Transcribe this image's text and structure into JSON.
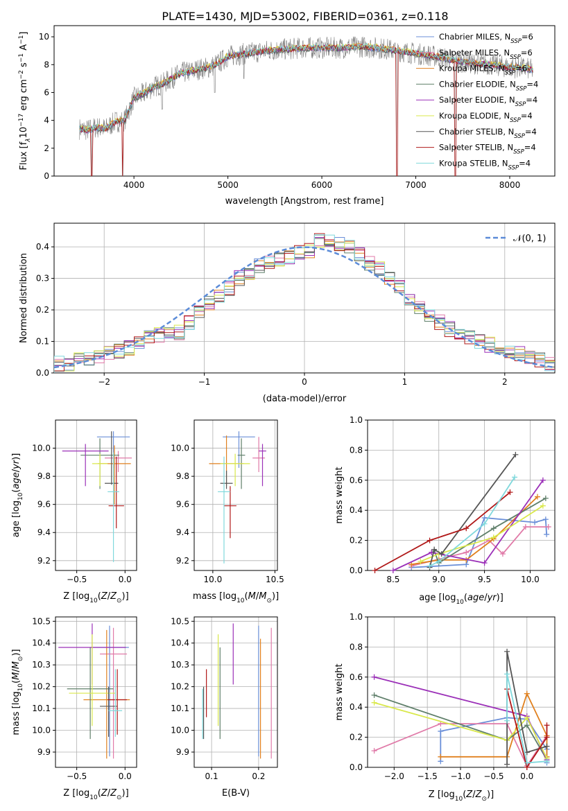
{
  "title": "PLATE=1430, MJD=53002, FIBERID=0361, z=0.118",
  "colors": {
    "Chabrier MILES": "#6a8fd8",
    "Salpeter MILES": "#e07aa8",
    "Kroupa MILES": "#e0801e",
    "Chabrier ELODIE": "#5f7f6a",
    "Salpeter ELODIE": "#9b30b8",
    "Kroupa ELODIE": "#d9e84a",
    "Chabrier STELIB": "#555555",
    "Salpeter STELIB": "#b01818",
    "Kroupa STELIB": "#7fd8dc"
  },
  "chart_data": [
    {
      "panel": "spectrum",
      "type": "line",
      "xlabel": "wavelength [Angstrom, rest frame]",
      "ylabel": "Flux [f",
      "ylabel_full": "Flux [fλ10^-17 erg cm^-2 s^-1 A^-1]",
      "xlim": [
        3150,
        8480
      ],
      "ylim": [
        0,
        10.8
      ],
      "xticks": [
        4000,
        5000,
        6000,
        7000,
        8000
      ],
      "yticks": [
        0,
        2,
        4,
        6,
        8,
        10
      ],
      "legend_position": "upper right",
      "data_color": "#808080",
      "continuum": {
        "x": [
          3420,
          3500,
          3600,
          3700,
          3800,
          3900,
          4000,
          4100,
          4200,
          4300,
          4400,
          4500,
          4600,
          4700,
          4800,
          4900,
          5000,
          5200,
          5400,
          5600,
          5800,
          6000,
          6200,
          6400,
          6600,
          6800,
          7000,
          7200,
          7400,
          7600,
          7800,
          8000,
          8100,
          8200,
          8250
        ],
        "y": [
          3.4,
          3.3,
          3.5,
          3.4,
          3.9,
          4.0,
          5.6,
          5.9,
          6.4,
          6.6,
          7.0,
          7.4,
          7.5,
          7.7,
          7.8,
          8.1,
          8.6,
          8.8,
          9.0,
          9.1,
          9.2,
          9.2,
          9.2,
          9.3,
          9.2,
          9.0,
          8.8,
          8.6,
          8.3,
          8.1,
          8.0,
          7.8,
          7.8,
          7.7,
          7.6
        ]
      },
      "dips": [
        {
          "x": 3550,
          "y": 0.0
        },
        {
          "x": 3880,
          "y": 0.0
        },
        {
          "x": 4300,
          "y": 4.8
        },
        {
          "x": 4860,
          "y": 6.0
        },
        {
          "x": 5170,
          "y": 7.0
        },
        {
          "x": 6800,
          "y": 0.0
        },
        {
          "x": 7420,
          "y": 0.0
        }
      ],
      "series": [
        {
          "name": "Chabrier MILES, N",
          "sub": "SSP",
          "suffix": "=6"
        },
        {
          "name": "Salpeter MILES, N",
          "sub": "SSP",
          "suffix": "=6"
        },
        {
          "name": "Kroupa MILES, N",
          "sub": "SSP",
          "suffix": "=6"
        },
        {
          "name": "Chabrier ELODIE, N",
          "sub": "SSP",
          "suffix": "=4"
        },
        {
          "name": "Salpeter ELODIE, N",
          "sub": "SSP",
          "suffix": "=4"
        },
        {
          "name": "Kroupa ELODIE, N",
          "sub": "SSP",
          "suffix": "=4"
        },
        {
          "name": "Chabrier STELIB, N",
          "sub": "SSP",
          "suffix": "=4"
        },
        {
          "name": "Salpeter STELIB, N",
          "sub": "SSP",
          "suffix": "=4"
        },
        {
          "name": "Kroupa STELIB, N",
          "sub": "SSP",
          "suffix": "=4"
        }
      ]
    },
    {
      "panel": "residuals",
      "type": "histogram",
      "xlabel": "(data-model)/error",
      "ylabel": "Normed distribution",
      "xlim": [
        -2.5,
        2.5
      ],
      "ylim": [
        0,
        0.475
      ],
      "xticks": [
        -2,
        -1,
        0,
        1,
        2
      ],
      "yticks": [
        0.0,
        0.1,
        0.2,
        0.3,
        0.4
      ],
      "grid": true,
      "gaussian_label": "𝒩(0, 1)",
      "gaussian_color": "#5b8bd8",
      "bin_edges_start": -2.5,
      "bin_width": 0.1,
      "base_hist": [
        0.03,
        0.03,
        0.04,
        0.04,
        0.05,
        0.06,
        0.07,
        0.08,
        0.1,
        0.11,
        0.12,
        0.13,
        0.13,
        0.16,
        0.19,
        0.22,
        0.24,
        0.27,
        0.3,
        0.32,
        0.34,
        0.35,
        0.36,
        0.37,
        0.38,
        0.39,
        0.42,
        0.42,
        0.41,
        0.4,
        0.38,
        0.35,
        0.33,
        0.3,
        0.27,
        0.24,
        0.21,
        0.18,
        0.16,
        0.14,
        0.12,
        0.11,
        0.1,
        0.09,
        0.08,
        0.07,
        0.06,
        0.05,
        0.04,
        0.03
      ]
    },
    {
      "panel": "age_vs_Z",
      "type": "errorbar",
      "xlabel": "Z [log10(Z/Z☉)]",
      "ylabel": "age  [log10(age/yr)]",
      "xlim": [
        -0.72,
        0.12
      ],
      "ylim": [
        9.13,
        10.2
      ],
      "xticks": [
        -0.5,
        0.0
      ],
      "yticks": [
        9.2,
        9.4,
        9.6,
        9.8,
        10.0
      ],
      "points": [
        {
          "series": "Chabrier MILES",
          "x": -0.12,
          "y": 10.08,
          "xerr": 0.17,
          "yerr_up": 0.04,
          "yerr_dn": 0.22
        },
        {
          "series": "Salpeter MILES",
          "x": -0.07,
          "y": 9.93,
          "xerr": 0.14,
          "yerr_up": 0.05,
          "yerr_dn": 0.1
        },
        {
          "series": "Kroupa MILES",
          "x": -0.11,
          "y": 9.89,
          "xerr": 0.17,
          "yerr_up": 0.13,
          "yerr_dn": 0.29
        },
        {
          "series": "Chabrier ELODIE",
          "x": -0.26,
          "y": 9.95,
          "xerr": 0.2,
          "yerr_up": 0.12,
          "yerr_dn": 0.24
        },
        {
          "series": "Salpeter ELODIE",
          "x": -0.41,
          "y": 9.98,
          "xerr": 0.24,
          "yerr_up": 0.05,
          "yerr_dn": 0.25
        },
        {
          "series": "Kroupa ELODIE",
          "x": -0.26,
          "y": 9.89,
          "xerr": 0.08,
          "yerr_up": 0.07,
          "yerr_dn": 0.16
        },
        {
          "series": "Chabrier STELIB",
          "x": -0.14,
          "y": 9.75,
          "xerr": 0.07,
          "yerr_up": 0.37,
          "yerr_dn": 0.01
        },
        {
          "series": "Salpeter STELIB",
          "x": -0.09,
          "y": 9.59,
          "xerr": 0.08,
          "yerr_up": 0.35,
          "yerr_dn": 0.16
        },
        {
          "series": "Kroupa STELIB",
          "x": -0.12,
          "y": 9.69,
          "xerr": 0.06,
          "yerr_up": 0.28,
          "yerr_dn": 0.5
        }
      ]
    },
    {
      "panel": "age_vs_mass",
      "type": "errorbar",
      "xlabel": "mass [log10(M/M☉)]",
      "ylabel": "",
      "xlim": [
        9.85,
        10.52
      ],
      "ylim": [
        9.13,
        10.2
      ],
      "xticks": [
        10.0,
        10.5
      ],
      "yticks": [
        9.2,
        9.4,
        9.6,
        9.8,
        10.0
      ],
      "points": [
        {
          "series": "Chabrier MILES",
          "x": 10.21,
          "y": 10.08,
          "xerr": 0.13,
          "yerr_up": 0.04,
          "yerr_dn": 0.22
        },
        {
          "series": "Salpeter MILES",
          "x": 10.37,
          "y": 9.93,
          "xerr": 0.05,
          "yerr_up": 0.15,
          "yerr_dn": 0.1
        },
        {
          "series": "Kroupa MILES",
          "x": 10.11,
          "y": 9.89,
          "xerr": 0.14,
          "yerr_up": 0.2,
          "yerr_dn": 0.16
        },
        {
          "series": "Chabrier ELODIE",
          "x": 10.23,
          "y": 9.95,
          "xerr": 0.03,
          "yerr_up": 0.12,
          "yerr_dn": 0.24
        },
        {
          "series": "Salpeter ELODIE",
          "x": 10.4,
          "y": 9.98,
          "xerr": 0.03,
          "yerr_up": 0.05,
          "yerr_dn": 0.25
        },
        {
          "series": "Kroupa ELODIE",
          "x": 10.18,
          "y": 9.89,
          "xerr": 0.12,
          "yerr_up": 0.07,
          "yerr_dn": 0.16
        },
        {
          "series": "Chabrier STELIB",
          "x": 10.11,
          "y": 9.75,
          "xerr": 0.05,
          "yerr_up": 0.09,
          "yerr_dn": 0.04
        },
        {
          "series": "Salpeter STELIB",
          "x": 10.14,
          "y": 9.59,
          "xerr": 0.05,
          "yerr_up": 0.14,
          "yerr_dn": 0.23
        },
        {
          "series": "Kroupa STELIB",
          "x": 10.09,
          "y": 9.69,
          "xerr": 0.05,
          "yerr_up": 0.25,
          "yerr_dn": 0.51
        }
      ]
    },
    {
      "panel": "mass_weight_vs_age",
      "type": "line",
      "xlabel": "age  [log10(age/yr)]",
      "ylabel": "mass weight",
      "xlim": [
        8.22,
        10.27
      ],
      "ylim": [
        0,
        1
      ],
      "xticks": [
        8.5,
        9.0,
        9.5,
        10.0
      ],
      "yticks": [
        0.0,
        0.2,
        0.4,
        0.6,
        0.8,
        1.0
      ],
      "grid": true,
      "series": [
        {
          "series": "Chabrier MILES",
          "x": [
            8.7,
            9.3,
            9.5,
            10.05,
            10.17,
            10.18
          ],
          "y": [
            0.02,
            0.04,
            0.35,
            0.32,
            0.34,
            0.24
          ]
        },
        {
          "series": "Salpeter MILES",
          "x": [
            8.7,
            9.3,
            9.55,
            9.7,
            9.95,
            10.2
          ],
          "y": [
            0.03,
            0.12,
            0.2,
            0.11,
            0.29,
            0.29
          ]
        },
        {
          "series": "Kroupa MILES",
          "x": [
            8.7,
            9.0,
            9.3,
            9.6,
            10.08
          ],
          "y": [
            0.04,
            0.07,
            0.07,
            0.21,
            0.49
          ]
        },
        {
          "series": "Chabrier ELODIE",
          "x": [
            8.95,
            9.0,
            9.6,
            10.17
          ],
          "y": [
            0.13,
            0.05,
            0.28,
            0.48
          ]
        },
        {
          "series": "Salpeter ELODIE",
          "x": [
            8.5,
            8.92,
            9.5,
            10.14
          ],
          "y": [
            0.0,
            0.12,
            0.05,
            0.6
          ]
        },
        {
          "series": "Kroupa ELODIE",
          "x": [
            8.8,
            9.0,
            9.6,
            10.14
          ],
          "y": [
            0.06,
            0.11,
            0.22,
            0.43
          ]
        },
        {
          "series": "Chabrier STELIB",
          "x": [
            8.9,
            8.95,
            9.03,
            9.84
          ],
          "y": [
            0.02,
            0.14,
            0.11,
            0.77
          ]
        },
        {
          "series": "Salpeter STELIB",
          "x": [
            8.3,
            8.9,
            9.3,
            9.78
          ],
          "y": [
            0.0,
            0.2,
            0.28,
            0.52
          ]
        },
        {
          "series": "Kroupa STELIB",
          "x": [
            8.9,
            9.0,
            9.5,
            9.83
          ],
          "y": [
            0.03,
            0.06,
            0.31,
            0.62
          ]
        }
      ]
    },
    {
      "panel": "mass_vs_Z",
      "type": "errorbar",
      "xlabel": "Z [log10(Z/Z☉)]",
      "ylabel": "mass [log10(M/M☉)]",
      "xlim": [
        -0.72,
        0.12
      ],
      "ylim": [
        9.83,
        10.52
      ],
      "xticks": [
        -0.5,
        0.0
      ],
      "yticks": [
        9.9,
        10.0,
        10.1,
        10.2,
        10.3,
        10.4,
        10.5
      ],
      "points": [
        {
          "series": "Chabrier MILES",
          "x": -0.16,
          "y": 10.38,
          "xerr": 0.2,
          "yerr_up": 0.1,
          "yerr_dn": 0.5
        },
        {
          "series": "Salpeter MILES",
          "x": -0.12,
          "y": 10.35,
          "xerr": 0.14,
          "yerr_up": 0.12,
          "yerr_dn": 0.48
        },
        {
          "series": "Kroupa MILES",
          "x": -0.19,
          "y": 10.14,
          "xerr": 0.24,
          "yerr_up": 0.32,
          "yerr_dn": 0.27
        },
        {
          "series": "Chabrier ELODIE",
          "x": -0.36,
          "y": 10.19,
          "xerr": 0.24,
          "yerr_up": 0.19,
          "yerr_dn": 0.23
        },
        {
          "series": "Salpeter ELODIE",
          "x": -0.34,
          "y": 10.38,
          "xerr": 0.35,
          "yerr_up": 0.11,
          "yerr_dn": 0.17
        },
        {
          "series": "Kroupa ELODIE",
          "x": -0.34,
          "y": 10.17,
          "xerr": 0.24,
          "yerr_up": 0.27,
          "yerr_dn": 0.15
        },
        {
          "series": "Chabrier STELIB",
          "x": -0.17,
          "y": 10.11,
          "xerr": 0.09,
          "yerr_up": 0.09,
          "yerr_dn": 0.14
        },
        {
          "series": "Salpeter STELIB",
          "x": -0.08,
          "y": 10.14,
          "xerr": 0.1,
          "yerr_up": 0.14,
          "yerr_dn": 0.16
        },
        {
          "series": "Kroupa STELIB",
          "x": -0.1,
          "y": 10.09,
          "xerr": 0.07,
          "yerr_up": 0.19,
          "yerr_dn": 0.12
        }
      ]
    },
    {
      "panel": "mass_vs_EBV",
      "type": "errorbar",
      "xlabel": "E(B-V)",
      "ylabel": "",
      "xlim": [
        0.063,
        0.24
      ],
      "ylim": [
        9.83,
        10.52
      ],
      "xticks": [
        0.1,
        0.2
      ],
      "yticks": [
        9.9,
        10.0,
        10.1,
        10.2,
        10.3,
        10.4,
        10.5
      ],
      "points": [
        {
          "series": "Chabrier MILES",
          "x": 0.2,
          "y": 10.38,
          "xerr": 0.0,
          "yerr_up": 0.1,
          "yerr_dn": 0.5
        },
        {
          "series": "Salpeter MILES",
          "x": 0.227,
          "y": 10.35,
          "xerr": 0.0,
          "yerr_up": 0.12,
          "yerr_dn": 0.48
        },
        {
          "series": "Kroupa MILES",
          "x": 0.204,
          "y": 10.14,
          "xerr": 0.0,
          "yerr_up": 0.28,
          "yerr_dn": 0.27
        },
        {
          "series": "Chabrier ELODIE",
          "x": 0.118,
          "y": 10.19,
          "xerr": 0.0,
          "yerr_up": 0.19,
          "yerr_dn": 0.23
        },
        {
          "series": "Salpeter ELODIE",
          "x": 0.146,
          "y": 10.38,
          "xerr": 0.0,
          "yerr_up": 0.11,
          "yerr_dn": 0.17
        },
        {
          "series": "Kroupa ELODIE",
          "x": 0.114,
          "y": 10.17,
          "xerr": 0.0,
          "yerr_up": 0.27,
          "yerr_dn": 0.15
        },
        {
          "series": "Chabrier STELIB",
          "x": 0.083,
          "y": 10.07,
          "xerr": 0.0,
          "yerr_up": 0.13,
          "yerr_dn": 0.11
        },
        {
          "series": "Salpeter STELIB",
          "x": 0.089,
          "y": 10.14,
          "xerr": 0.0,
          "yerr_up": 0.14,
          "yerr_dn": 0.08
        },
        {
          "series": "Kroupa STELIB",
          "x": 0.081,
          "y": 10.06,
          "xerr": 0.0,
          "yerr_up": 0.13,
          "yerr_dn": 0.1
        }
      ]
    },
    {
      "panel": "mass_weight_vs_Z",
      "type": "line",
      "xlabel": "Z [log10(Z/Z☉)]",
      "ylabel": "mass weight",
      "xlim": [
        -2.4,
        0.42
      ],
      "ylim": [
        0,
        1
      ],
      "xticks": [
        -2.0,
        -1.5,
        -1.0,
        -0.5,
        0.0
      ],
      "yticks": [
        0.0,
        0.2,
        0.4,
        0.6,
        0.8,
        1.0
      ],
      "grid": true,
      "series": [
        {
          "series": "Chabrier MILES",
          "x": [
            -1.3,
            -1.3,
            -0.3,
            0.0,
            0.3,
            0.3
          ],
          "y": [
            0.04,
            0.24,
            0.33,
            0.32,
            0.12,
            0.03
          ]
        },
        {
          "series": "Salpeter MILES",
          "x": [
            -2.3,
            -1.3,
            -0.3,
            0.0,
            0.3
          ],
          "y": [
            0.11,
            0.29,
            0.29,
            0.01,
            0.21
          ]
        },
        {
          "series": "Kroupa MILES",
          "x": [
            -1.3,
            -0.3,
            0.0,
            0.3,
            0.3
          ],
          "y": [
            0.07,
            0.07,
            0.49,
            0.21,
            0.07
          ]
        },
        {
          "series": "Chabrier ELODIE",
          "x": [
            -2.3,
            -0.3,
            0.0,
            0.3
          ],
          "y": [
            0.48,
            0.18,
            0.28,
            0.05
          ]
        },
        {
          "series": "Salpeter ELODIE",
          "x": [
            -2.3,
            0.0,
            0.3
          ],
          "y": [
            0.6,
            0.34,
            0.05
          ]
        },
        {
          "series": "Kroupa ELODIE",
          "x": [
            -2.3,
            -0.3,
            0.0,
            0.3
          ],
          "y": [
            0.43,
            0.18,
            0.33,
            0.06
          ]
        },
        {
          "series": "Chabrier STELIB",
          "x": [
            -0.3,
            -0.3,
            0.0,
            0.3
          ],
          "y": [
            0.02,
            0.77,
            0.1,
            0.14
          ]
        },
        {
          "series": "Salpeter STELIB",
          "x": [
            -0.3,
            0.0,
            0.3,
            0.3
          ],
          "y": [
            0.52,
            0.0,
            0.2,
            0.28
          ]
        },
        {
          "series": "Kroupa STELIB",
          "x": [
            -0.3,
            -0.3,
            0.0,
            0.3
          ],
          "y": [
            0.31,
            0.62,
            0.03,
            0.04
          ]
        }
      ]
    }
  ]
}
